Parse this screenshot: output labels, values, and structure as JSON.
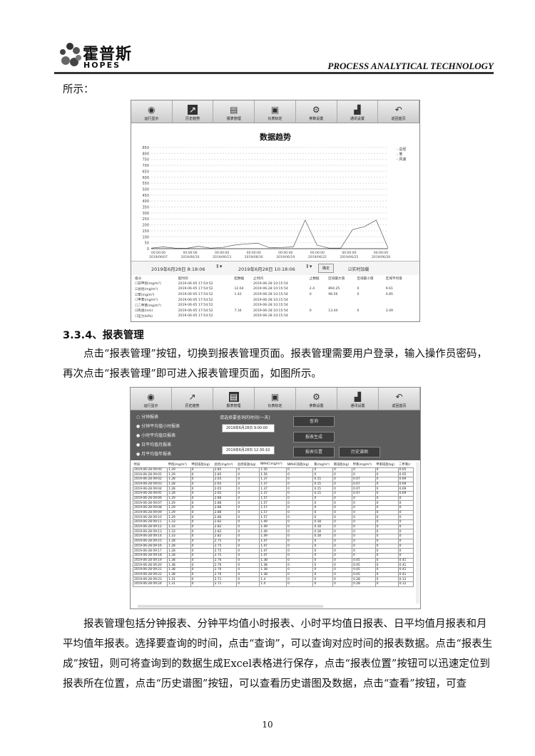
{
  "header": {
    "logo_cn": "霍普斯",
    "logo_en": "HOPES",
    "tagline": "PROCESS ANALYTICAL TECHNOLOGY"
  },
  "intro_text": "所示：",
  "toolbar": {
    "items": [
      {
        "label": "运行显示",
        "icon": "monitor-icon"
      },
      {
        "label": "历史趋势",
        "icon": "trend-icon"
      },
      {
        "label": "报表管理",
        "icon": "report-icon"
      },
      {
        "label": "仪表标定",
        "icon": "calibration-icon"
      },
      {
        "label": "参数设置",
        "icon": "gear-icon"
      },
      {
        "label": "通讯设置",
        "icon": "bar-chart-icon"
      },
      {
        "label": "返回首页",
        "icon": "back-arrow-icon"
      }
    ]
  },
  "trend_screen": {
    "active_tab": 1,
    "chart_data": {
      "type": "line",
      "title": "数据趋势",
      "y_ticks": [
        0,
        50,
        100,
        150,
        200,
        250,
        300,
        350,
        400,
        450,
        500,
        550,
        600,
        650,
        700,
        750,
        800,
        850
      ],
      "ylim": [
        0,
        850
      ],
      "x_ticks": [
        [
          "00:00:00",
          "2019/06/07"
        ],
        [
          "00:00:00",
          "2019/06/10"
        ],
        [
          "00:00:00",
          "2019/06/13"
        ],
        [
          "00:00:00",
          "2019/06/16"
        ],
        [
          "00:00:00",
          "2019/06/19"
        ],
        [
          "00:00:00",
          "2019/06/22"
        ],
        [
          "00:00:00",
          "2019/06/25"
        ],
        [
          "00:00:00",
          "2019/06/28"
        ]
      ],
      "legend": [
        "总烃",
        "苯",
        "风速"
      ],
      "legend_position": "top-right",
      "grid": true,
      "series": [
        {
          "name": "总烃",
          "values": [
            5,
            15,
            5,
            3,
            20,
            5,
            10,
            30,
            40,
            45,
            8,
            10,
            15,
            240,
            30,
            5,
            5,
            160,
            185,
            240,
            5
          ]
        }
      ]
    },
    "start_time": "2019年6月28日 8:18:06",
    "end_time": "2019年6月28日 10:18:06",
    "confirm_label": "确定",
    "realtime_label": "实时加载",
    "table": {
      "headers": [
        "组分",
        "起时间",
        "起数据",
        "止时间",
        "止数据",
        "区域最大值",
        "区域最小值",
        "区域平均值"
      ],
      "rows": [
        {
          "checked": false,
          "cells": [
            "非甲烷(mg/m³)",
            "2019-06-05 17:54:52",
            "",
            "2019-06-28 10:15:54",
            "",
            "",
            "",
            ""
          ]
        },
        {
          "checked": true,
          "cells": [
            "总烃(mg/m³)",
            "2019-06-05 17:54:52",
            "12.64",
            "2019-06-28 10:15:54",
            "2.4",
            "894.25",
            "0",
            "9.61"
          ]
        },
        {
          "checked": true,
          "cells": [
            "苯(mg/m³)",
            "2019-06-05 17:54:52",
            "1.42",
            "2019-06-28 10:15:54",
            "0",
            "98.56",
            "0",
            "0.85"
          ]
        },
        {
          "checked": false,
          "cells": [
            "甲苯(mg/m³)",
            "2019-06-05 17:54:52",
            "",
            "2019-06-28 10:15:54",
            "",
            "",
            "",
            ""
          ]
        },
        {
          "checked": false,
          "cells": [
            "二甲苯(mg/m³)",
            "2019-06-05 17:54:52",
            "",
            "2019-06-28 10:15:54",
            "",
            "",
            "",
            ""
          ]
        },
        {
          "checked": true,
          "cells": [
            "风速(m/s)",
            "2019-06-05 17:54:52",
            "7.34",
            "2019-06-28 10:15:54",
            "0",
            "13.44",
            "0",
            "3.49"
          ]
        },
        {
          "checked": false,
          "cells": [
            "压力(kPa)",
            "2019-06-05 17:54:52",
            "",
            "2019-06-28 10:15:54",
            "",
            "",
            "",
            ""
          ]
        }
      ]
    }
  },
  "section_title": "3.3.4、报表管理",
  "para1": "点击“报表管理”按钮，切换到报表管理页面。报表管理需要用户登录，输入操作员密码，再次点击“报表管理”即可进入报表管理页面，如图所示。",
  "report_screen": {
    "active_tab": 2,
    "report_types": [
      "分钟报表",
      "分钟平均值小时报表",
      "小时平均值日报表",
      "日平均值月报表",
      "月平均值年报表"
    ],
    "prompt": "请选择要查询的时间(一天)",
    "start_time": "2019年6月28日 9:00:00",
    "end_time": "2019年6月28日 12:30:10",
    "buttons": {
      "query": "查询",
      "generate": "报表生成",
      "location": "报表位置",
      "history": "历史谱图"
    },
    "table": {
      "headers": [
        "时间",
        "甲烷(mg/m³)",
        "甲烷排放(kg)",
        "总烃(mg/m³)",
        "总烃排放(kg)",
        "NMHC(mg/m³)",
        "NMHC排放(kg)",
        "苯(mg/m³)",
        "苯排放(kg)",
        "甲苯(mg/m³)",
        "甲苯排放(kg)",
        "二甲苯(r"
      ],
      "rows": [
        [
          "2019-06-28 09:00",
          "1.29",
          "0",
          "2.85",
          "0",
          "1.56",
          "0",
          "0",
          "0",
          "0",
          "0",
          "0.05"
        ],
        [
          "2019-06-28 09:01",
          "1.29",
          "0",
          "2.85",
          "0",
          "1.56",
          "0",
          "0",
          "0",
          "0",
          "0",
          "0.05"
        ],
        [
          "2019-06-28 09:02",
          "1.28",
          "0",
          "2.65",
          "0",
          "1.37",
          "0",
          "0.15",
          "0",
          "0.07",
          "0",
          "0.69"
        ],
        [
          "2019-06-28 09:03",
          "1.28",
          "0",
          "2.65",
          "0",
          "1.37",
          "0",
          "0.15",
          "0",
          "0.07",
          "0",
          "0.69"
        ],
        [
          "2019-06-28 09:04",
          "1.28",
          "0",
          "2.65",
          "0",
          "1.37",
          "0",
          "0.15",
          "0",
          "0.07",
          "0",
          "0.69"
        ],
        [
          "2019-06-28 09:05",
          "1.28",
          "0",
          "2.65",
          "0",
          "1.37",
          "0",
          "0.15",
          "0",
          "0.07",
          "0",
          "0.69"
        ],
        [
          "2019-06-28 09:06",
          "1.29",
          "0",
          "2.86",
          "0",
          "1.57",
          "0",
          "0",
          "0",
          "0",
          "0",
          "0"
        ],
        [
          "2019-06-28 09:07",
          "1.29",
          "0",
          "2.86",
          "0",
          "1.57",
          "0",
          "0",
          "0",
          "0",
          "0",
          "0"
        ],
        [
          "2019-06-28 09:08",
          "1.29",
          "0",
          "2.86",
          "0",
          "1.57",
          "0",
          "0",
          "0",
          "0",
          "0",
          "0"
        ],
        [
          "2019-06-28 09:09",
          "1.29",
          "0",
          "2.86",
          "0",
          "1.57",
          "0",
          "0",
          "0",
          "0",
          "0",
          "0"
        ],
        [
          "2019-06-28 09:10",
          "1.29",
          "0",
          "2.86",
          "0",
          "1.57",
          "0",
          "0",
          "0",
          "0",
          "0",
          "0"
        ],
        [
          "2019-06-28 09:11",
          "1.33",
          "0",
          "2.82",
          "0",
          "1.49",
          "0",
          "0.18",
          "0",
          "0",
          "0",
          "0"
        ],
        [
          "2019-06-28 09:12",
          "1.33",
          "0",
          "2.82",
          "0",
          "1.49",
          "0",
          "0.18",
          "0",
          "0",
          "0",
          "0"
        ],
        [
          "2019-06-28 09:13",
          "1.33",
          "0",
          "2.82",
          "0",
          "1.49",
          "0",
          "0.18",
          "0",
          "0",
          "0",
          "0"
        ],
        [
          "2019-06-28 09:14",
          "1.33",
          "0",
          "2.82",
          "0",
          "1.49",
          "0",
          "0.18",
          "0",
          "0",
          "0",
          "0"
        ],
        [
          "2019-06-28 09:15",
          "1.28",
          "0",
          "2.75",
          "0",
          "1.47",
          "0",
          "0",
          "0",
          "0",
          "0",
          "0"
        ],
        [
          "2019-06-28 09:16",
          "1.28",
          "0",
          "2.75",
          "0",
          "1.47",
          "0",
          "0",
          "0",
          "0",
          "0",
          "0"
        ],
        [
          "2019-06-28 09:17",
          "1.28",
          "0",
          "2.75",
          "0",
          "1.47",
          "0",
          "0",
          "0",
          "0",
          "0",
          "0"
        ],
        [
          "2019-06-28 09:18",
          "1.28",
          "0",
          "2.75",
          "0",
          "1.47",
          "0",
          "0",
          "0",
          "0",
          "0",
          "0"
        ],
        [
          "2019-06-28 09:19",
          "1.38",
          "0",
          "2.76",
          "0",
          "1.38",
          "0",
          "0",
          "0",
          "0.05",
          "0",
          "0.41"
        ],
        [
          "2019-06-28 09:20",
          "1.38",
          "0",
          "2.76",
          "0",
          "1.38",
          "0",
          "0",
          "0",
          "0.05",
          "0",
          "0.41"
        ],
        [
          "2019-06-28 09:21",
          "1.38",
          "0",
          "2.76",
          "0",
          "1.38",
          "0",
          "0",
          "0",
          "0.05",
          "0",
          "0.41"
        ],
        [
          "2019-06-28 09:22",
          "1.38",
          "0",
          "2.76",
          "0",
          "1.38",
          "0",
          "0",
          "0",
          "0.05",
          "0",
          "0.41"
        ],
        [
          "2019-06-28 09:23",
          "1.31",
          "0",
          "2.71",
          "0",
          "1.4",
          "0",
          "0",
          "0",
          "0.28",
          "0",
          "0.12"
        ],
        [
          "2019-06-28 09:24",
          "1.31",
          "0",
          "2.71",
          "0",
          "1.4",
          "0",
          "0",
          "0",
          "0.28",
          "0",
          "0.12"
        ]
      ]
    }
  },
  "para2": "报表管理包括分钟报表、分钟平均值小时报表、小时平均值日报表、日平均值月报表和月平均值年报表。选择要查询的时间，点击“查询”，可以查询对应时间的报表数据。点击“报表生成”按钮，则可将查询到的数据生成Excel表格进行保存，点击“报表位置”按钮可以迅速定位到报表所在位置，点击“历史谱图”按钮，可以查看历史谱图及数据，点击“查看”按钮，可查",
  "page_number": "10"
}
